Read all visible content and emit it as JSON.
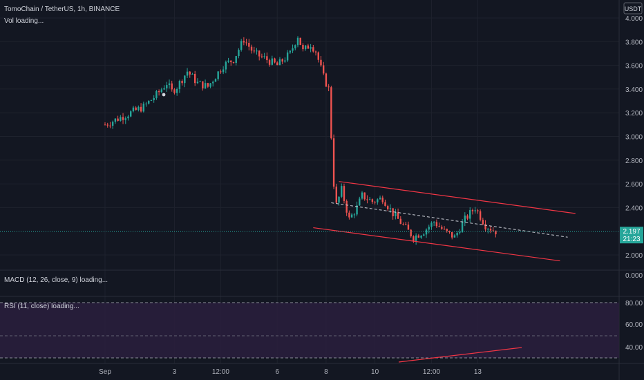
{
  "header": {
    "symbol_line": "TomoChain / TetherUS, 1h, BINANCE",
    "vol_label": "Vol loading...",
    "currency_badge": "USDT"
  },
  "price_axis": {
    "ticks": [
      "4.000",
      "3.800",
      "3.600",
      "3.400",
      "3.200",
      "3.000",
      "2.800",
      "2.600",
      "2.400",
      "2.000"
    ],
    "current_price": "2.197",
    "countdown": "21:23"
  },
  "macd": {
    "label": "MACD (12, 26, close, 9) loading...",
    "axis_value": "0.000"
  },
  "rsi": {
    "label": "RSI (11, close) loading...",
    "ticks": [
      "80.00",
      "60.00",
      "40.00"
    ]
  },
  "time_axis": {
    "labels": [
      "Sep",
      "3",
      "12:00",
      "6",
      "8",
      "10",
      "12:00",
      "13"
    ]
  },
  "colors": {
    "background": "#131722",
    "bull": "#26a69a",
    "bear": "#ef5350",
    "channel": "#f23645",
    "rsi_band": "#2a1f3d",
    "price_line": "#26a69a"
  },
  "chart_data": {
    "type": "candlestick",
    "symbol": "TomoChain / TetherUS",
    "interval": "1h",
    "exchange": "BINANCE",
    "x_labels": [
      "Sep",
      "3",
      "12:00",
      "6",
      "8",
      "10",
      "12:00",
      "13"
    ],
    "ylim": [
      1.9,
      4.05
    ],
    "current_price": 2.197,
    "close_path": [
      {
        "t": 0,
        "p": 3.1
      },
      {
        "t": 8,
        "p": 3.18
      },
      {
        "t": 15,
        "p": 3.25
      },
      {
        "t": 20,
        "p": 3.35
      },
      {
        "t": 24,
        "p": 3.45
      },
      {
        "t": 26,
        "p": 3.38
      },
      {
        "t": 28,
        "p": 3.42
      },
      {
        "t": 32,
        "p": 3.55
      },
      {
        "t": 36,
        "p": 3.45
      },
      {
        "t": 40,
        "p": 3.42
      },
      {
        "t": 46,
        "p": 3.6
      },
      {
        "t": 50,
        "p": 3.65
      },
      {
        "t": 54,
        "p": 3.82
      },
      {
        "t": 58,
        "p": 3.7
      },
      {
        "t": 62,
        "p": 3.66
      },
      {
        "t": 67,
        "p": 3.6
      },
      {
        "t": 72,
        "p": 3.7
      },
      {
        "t": 75,
        "p": 3.85
      },
      {
        "t": 77,
        "p": 3.72
      },
      {
        "t": 80,
        "p": 3.78
      },
      {
        "t": 82,
        "p": 3.72
      },
      {
        "t": 85,
        "p": 3.5
      },
      {
        "t": 87,
        "p": 3.4
      },
      {
        "t": 88,
        "p": 3.0
      },
      {
        "t": 89,
        "p": 2.6
      },
      {
        "t": 90,
        "p": 2.42
      },
      {
        "t": 92,
        "p": 2.55
      },
      {
        "t": 95,
        "p": 2.3
      },
      {
        "t": 98,
        "p": 2.4
      },
      {
        "t": 100,
        "p": 2.5
      },
      {
        "t": 104,
        "p": 2.45
      },
      {
        "t": 108,
        "p": 2.48
      },
      {
        "t": 112,
        "p": 2.35
      },
      {
        "t": 116,
        "p": 2.25
      },
      {
        "t": 120,
        "p": 2.15
      },
      {
        "t": 124,
        "p": 2.2
      },
      {
        "t": 128,
        "p": 2.28
      },
      {
        "t": 132,
        "p": 2.2
      },
      {
        "t": 136,
        "p": 2.15
      },
      {
        "t": 140,
        "p": 2.3
      },
      {
        "t": 144,
        "p": 2.4
      },
      {
        "t": 148,
        "p": 2.25
      },
      {
        "t": 152,
        "p": 2.2
      }
    ],
    "channel": {
      "upper": [
        {
          "t": 91,
          "p": 2.62
        },
        {
          "t": 183,
          "p": 2.35
        }
      ],
      "lower": [
        {
          "t": 81,
          "p": 2.23
        },
        {
          "t": 177,
          "p": 1.95
        }
      ],
      "mid": [
        {
          "t": 88,
          "p": 2.44
        },
        {
          "t": 180,
          "p": 2.15
        }
      ]
    },
    "t_range": [
      0,
      200
    ],
    "time_label_t": [
      0,
      27,
      45,
      67,
      86,
      105,
      127,
      145
    ]
  }
}
